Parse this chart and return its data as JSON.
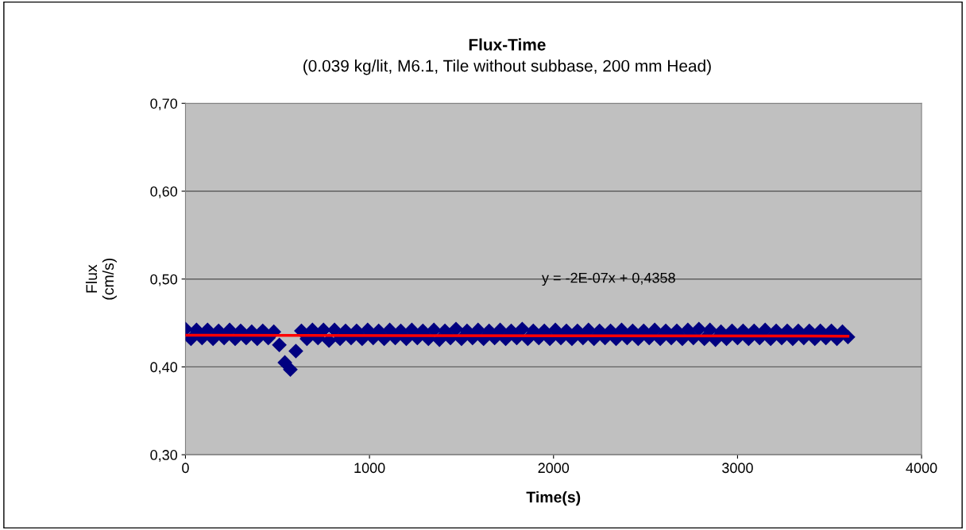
{
  "chart_data": {
    "type": "scatter",
    "title": "Flux-Time",
    "subtitle": "(0.039 kg/lit, M6.1, Tile without subbase, 200 mm Head)",
    "xlabel": "Time(s)",
    "ylabel": "Flux\n(cm/s)",
    "annotations": [
      "y = -2E-07x + 0,4358"
    ],
    "xlim": [
      0,
      4000
    ],
    "xticks": [
      0,
      1000,
      2000,
      3000,
      4000
    ],
    "ylim": [
      0.3,
      0.7
    ],
    "yticks": [
      {
        "value": 0.3,
        "label": "0,30"
      },
      {
        "value": 0.4,
        "label": "0,40"
      },
      {
        "value": 0.5,
        "label": "0,50"
      },
      {
        "value": 0.6,
        "label": "0,60"
      },
      {
        "value": 0.7,
        "label": "0,70"
      }
    ],
    "grid": "y",
    "legend": false,
    "marker": "diamond",
    "series": [
      {
        "color": "#000080",
        "x": [
          0,
          30,
          60,
          90,
          120,
          150,
          180,
          210,
          240,
          270,
          300,
          330,
          360,
          390,
          420,
          450,
          480,
          510,
          540,
          570,
          600,
          630,
          660,
          690,
          720,
          750,
          780,
          810,
          840,
          870,
          900,
          930,
          960,
          990,
          1020,
          1050,
          1080,
          1110,
          1140,
          1170,
          1200,
          1230,
          1260,
          1290,
          1320,
          1350,
          1380,
          1410,
          1440,
          1470,
          1500,
          1530,
          1560,
          1590,
          1620,
          1650,
          1680,
          1710,
          1740,
          1770,
          1800,
          1830,
          1860,
          1890,
          1920,
          1950,
          1980,
          2010,
          2040,
          2070,
          2100,
          2130,
          2160,
          2190,
          2220,
          2250,
          2280,
          2310,
          2340,
          2370,
          2400,
          2430,
          2460,
          2490,
          2520,
          2550,
          2580,
          2610,
          2640,
          2670,
          2700,
          2730,
          2760,
          2790,
          2820,
          2850,
          2880,
          2910,
          2940,
          2970,
          3000,
          3030,
          3060,
          3090,
          3120,
          3150,
          3180,
          3210,
          3240,
          3270,
          3300,
          3330,
          3360,
          3390,
          3420,
          3450,
          3480,
          3510,
          3540,
          3570,
          3600
        ],
        "values": [
          0.443,
          0.432,
          0.442,
          0.433,
          0.442,
          0.432,
          0.441,
          0.433,
          0.442,
          0.432,
          0.441,
          0.433,
          0.44,
          0.432,
          0.441,
          0.433,
          0.44,
          0.425,
          0.405,
          0.397,
          0.418,
          0.441,
          0.432,
          0.442,
          0.433,
          0.442,
          0.43,
          0.442,
          0.432,
          0.441,
          0.433,
          0.441,
          0.432,
          0.442,
          0.433,
          0.441,
          0.432,
          0.442,
          0.433,
          0.441,
          0.432,
          0.442,
          0.433,
          0.441,
          0.432,
          0.442,
          0.431,
          0.441,
          0.433,
          0.443,
          0.432,
          0.441,
          0.433,
          0.442,
          0.432,
          0.441,
          0.433,
          0.442,
          0.432,
          0.441,
          0.433,
          0.443,
          0.432,
          0.441,
          0.433,
          0.441,
          0.432,
          0.442,
          0.433,
          0.441,
          0.432,
          0.441,
          0.433,
          0.442,
          0.432,
          0.441,
          0.433,
          0.441,
          0.432,
          0.442,
          0.433,
          0.441,
          0.432,
          0.441,
          0.433,
          0.442,
          0.432,
          0.441,
          0.433,
          0.441,
          0.432,
          0.442,
          0.433,
          0.443,
          0.432,
          0.442,
          0.431,
          0.44,
          0.432,
          0.441,
          0.433,
          0.441,
          0.432,
          0.441,
          0.433,
          0.442,
          0.432,
          0.441,
          0.433,
          0.441,
          0.432,
          0.441,
          0.433,
          0.441,
          0.432,
          0.441,
          0.433,
          0.441,
          0.432,
          0.44,
          0.434
        ]
      },
      {
        "type": "line",
        "marker": "none",
        "color": "#ff0000",
        "x": [
          0,
          3600
        ],
        "values": [
          0.436,
          0.435
        ]
      }
    ]
  }
}
